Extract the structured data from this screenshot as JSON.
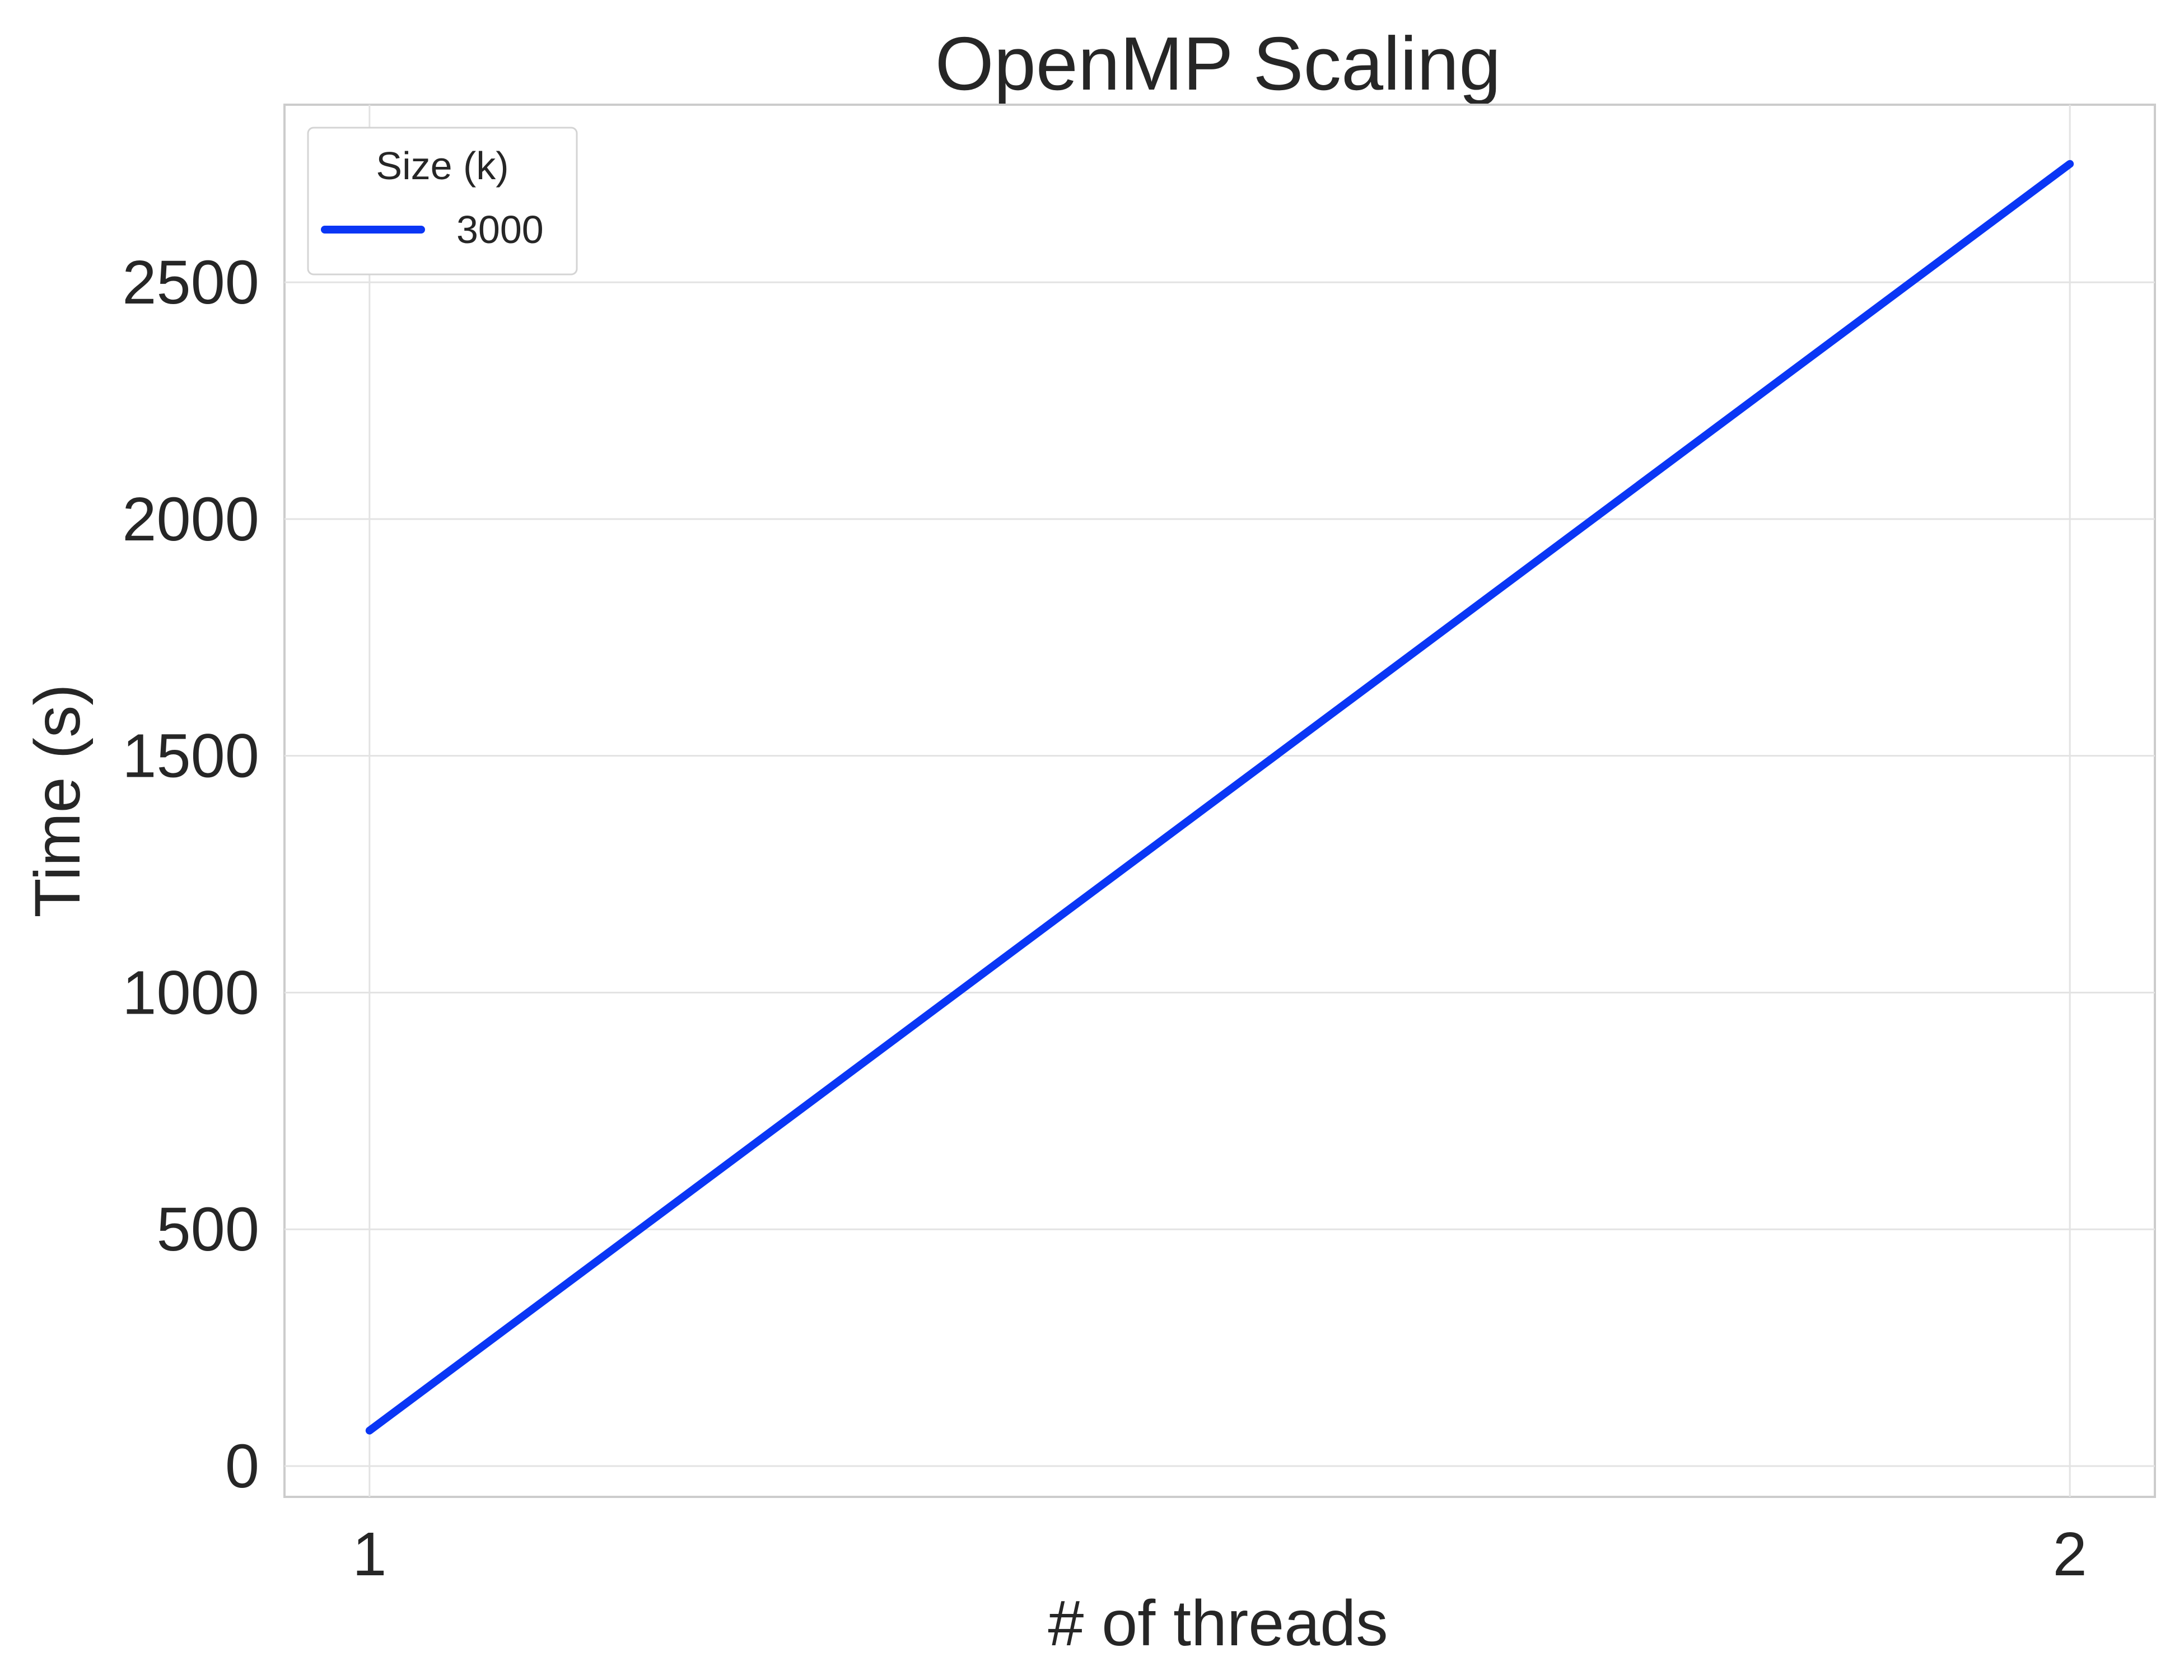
{
  "chart_data": {
    "type": "line",
    "title": "OpenMP Scaling",
    "xlabel": "# of threads",
    "ylabel": "Time (s)",
    "x": [
      1,
      2
    ],
    "xticks": [
      1,
      2
    ],
    "xtick_labels": [
      "1",
      "2"
    ],
    "xlim": [
      0.95,
      2.05
    ],
    "yticks": [
      0,
      500,
      1000,
      1500,
      2000,
      2500
    ],
    "ytick_labels": [
      "0",
      "500",
      "1000",
      "1500",
      "2000",
      "2500"
    ],
    "ylim": [
      -65,
      2875
    ],
    "grid": true,
    "legend": {
      "title": "Size (k)",
      "placement": "top-left"
    },
    "series": [
      {
        "name": "3000",
        "color": "#0a36f5",
        "values": [
          75,
          2750
        ]
      }
    ]
  }
}
